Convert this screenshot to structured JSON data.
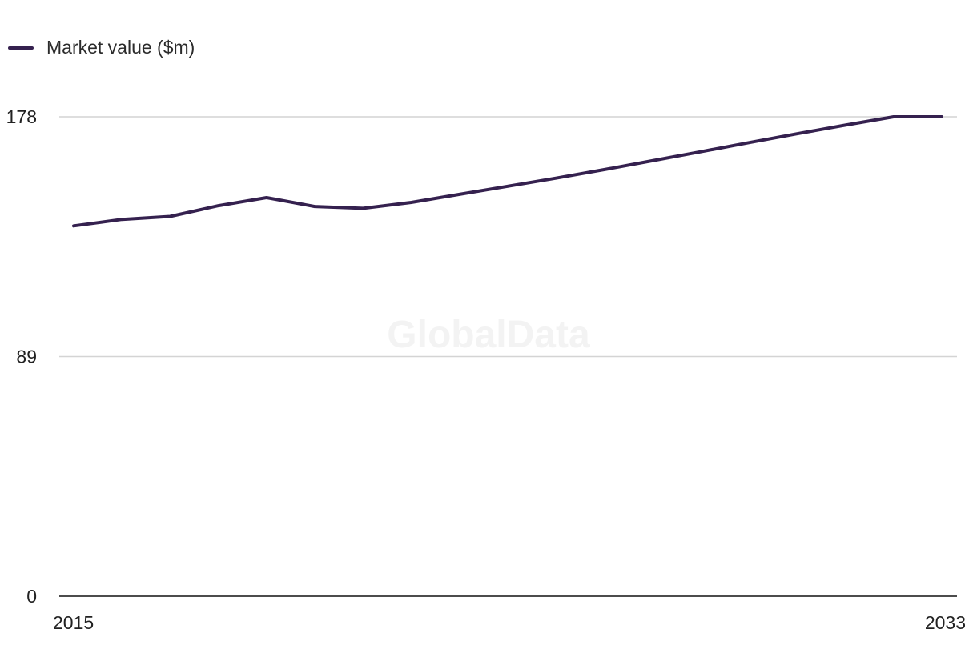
{
  "legend": {
    "label": "Market value ($m)"
  },
  "colors": {
    "series": "#35214f",
    "grid": "#d4d4d4",
    "axis": "#111111"
  },
  "watermark": "GlobalData",
  "chart_data": {
    "type": "line",
    "x": [
      2015,
      2016,
      2017,
      2018,
      2019,
      2020,
      2021,
      2022,
      2023,
      2024,
      2025,
      2026,
      2027,
      2028,
      2029,
      2030,
      2031,
      2032,
      2033
    ],
    "series": [
      {
        "name": "Market value ($m)",
        "values": [
          137.5,
          139.9,
          141.0,
          145.0,
          148.0,
          144.7,
          144.0,
          146.2,
          149.2,
          152.2,
          155.2,
          158.4,
          161.7,
          165.0,
          168.4,
          171.7,
          174.9,
          178.0,
          178.0
        ]
      }
    ],
    "yticks": [
      "0",
      "89",
      "178"
    ],
    "xtick_labels": [
      "2015",
      "2033"
    ],
    "ylim": [
      0,
      178
    ],
    "xlim": [
      2015,
      2033
    ],
    "grid": true,
    "legend_position": "top-left",
    "title": "",
    "xlabel": "",
    "ylabel": ""
  }
}
